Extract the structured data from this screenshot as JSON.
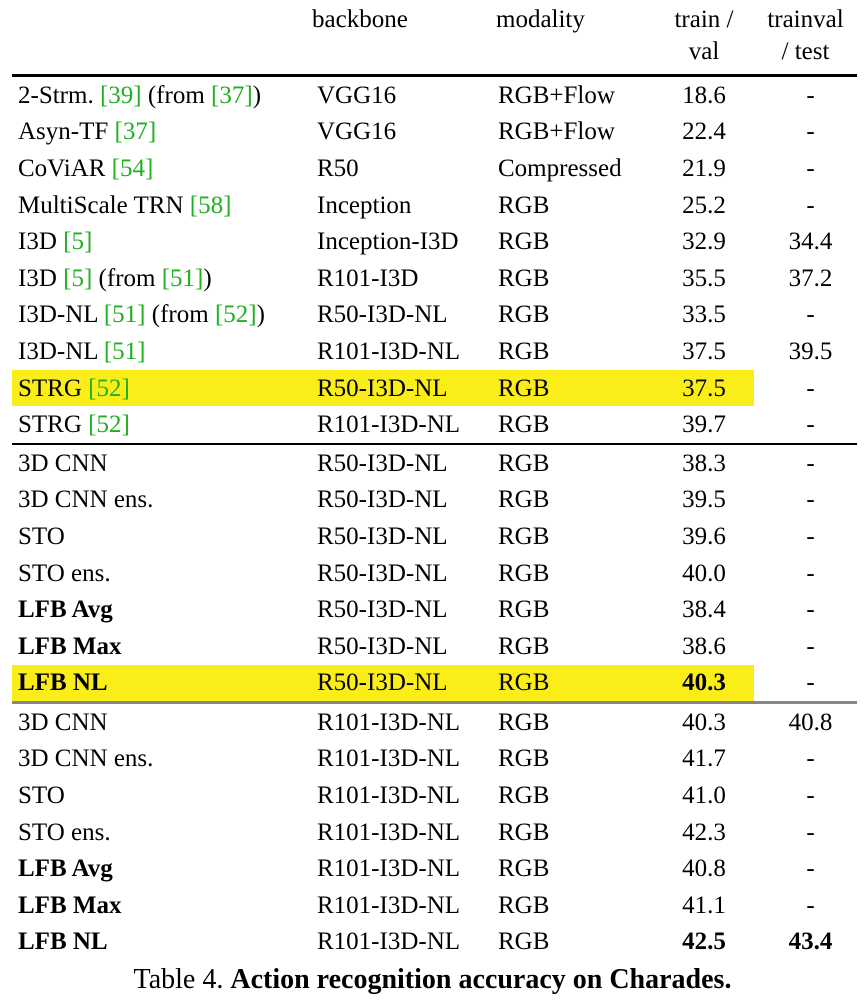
{
  "headers": {
    "method": "",
    "backbone": "backbone",
    "modality": "modality",
    "trainval_line1": "train /",
    "trainval_line2": "val",
    "test_line1": "trainval",
    "test_line2": "/ test"
  },
  "rows": [
    {
      "method_parts": [
        {
          "t": "2-Strm. "
        },
        {
          "t": "[39]",
          "cite": true
        },
        {
          "t": " (from "
        },
        {
          "t": "[37]",
          "cite": true
        },
        {
          "t": ")"
        }
      ],
      "backbone": "VGG16",
      "modality": "RGB+Flow",
      "trainval": "18.6",
      "test": "-"
    },
    {
      "method_parts": [
        {
          "t": "Asyn-TF "
        },
        {
          "t": "[37]",
          "cite": true
        }
      ],
      "backbone": "VGG16",
      "modality": "RGB+Flow",
      "trainval": "22.4",
      "test": "-"
    },
    {
      "method_parts": [
        {
          "t": "CoViAR "
        },
        {
          "t": "[54]",
          "cite": true
        }
      ],
      "backbone": "R50",
      "modality": "Compressed",
      "trainval": "21.9",
      "test": "-"
    },
    {
      "method_parts": [
        {
          "t": "MultiScale TRN "
        },
        {
          "t": "[58]",
          "cite": true
        }
      ],
      "backbone": "Inception",
      "modality": "RGB",
      "trainval": "25.2",
      "test": "-"
    },
    {
      "method_parts": [
        {
          "t": "I3D "
        },
        {
          "t": "[5]",
          "cite": true
        }
      ],
      "backbone": "Inception-I3D",
      "modality": "RGB",
      "trainval": "32.9",
      "test": "34.4"
    },
    {
      "method_parts": [
        {
          "t": "I3D "
        },
        {
          "t": "[5]",
          "cite": true
        },
        {
          "t": " (from "
        },
        {
          "t": "[51]",
          "cite": true
        },
        {
          "t": ")"
        }
      ],
      "backbone": "R101-I3D",
      "modality": "RGB",
      "trainval": "35.5",
      "test": "37.2"
    },
    {
      "method_parts": [
        {
          "t": "I3D-NL "
        },
        {
          "t": "[51]",
          "cite": true
        },
        {
          "t": " (from "
        },
        {
          "t": "[52]",
          "cite": true
        },
        {
          "t": ")"
        }
      ],
      "backbone": "R50-I3D-NL",
      "modality": "RGB",
      "trainval": "33.5",
      "test": "-"
    },
    {
      "method_parts": [
        {
          "t": "I3D-NL "
        },
        {
          "t": "[51]",
          "cite": true
        }
      ],
      "backbone": "R101-I3D-NL",
      "modality": "RGB",
      "trainval": "37.5",
      "test": "39.5"
    },
    {
      "method_parts": [
        {
          "t": "STRG "
        },
        {
          "t": "[52]",
          "cite": true
        }
      ],
      "backbone": "R50-I3D-NL",
      "modality": "RGB",
      "trainval": "37.5",
      "test": "-",
      "highlight": true
    },
    {
      "method_parts": [
        {
          "t": "STRG "
        },
        {
          "t": "[52]",
          "cite": true
        }
      ],
      "backbone": "R101-I3D-NL",
      "modality": "RGB",
      "trainval": "39.7",
      "test": "-"
    },
    {
      "method_parts": [
        {
          "t": "3D CNN"
        }
      ],
      "backbone": "R50-I3D-NL",
      "modality": "RGB",
      "trainval": "38.3",
      "test": "-",
      "sep": "black"
    },
    {
      "method_parts": [
        {
          "t": "3D CNN ens."
        }
      ],
      "backbone": "R50-I3D-NL",
      "modality": "RGB",
      "trainval": "39.5",
      "test": "-"
    },
    {
      "method_parts": [
        {
          "t": "STO"
        }
      ],
      "backbone": "R50-I3D-NL",
      "modality": "RGB",
      "trainval": "39.6",
      "test": "-"
    },
    {
      "method_parts": [
        {
          "t": "STO ens."
        }
      ],
      "backbone": "R50-I3D-NL",
      "modality": "RGB",
      "trainval": "40.0",
      "test": "-"
    },
    {
      "method_parts": [
        {
          "t": "LFB Avg",
          "bold": true
        }
      ],
      "backbone": "R50-I3D-NL",
      "modality": "RGB",
      "trainval": "38.4",
      "test": "-"
    },
    {
      "method_parts": [
        {
          "t": "LFB Max",
          "bold": true
        }
      ],
      "backbone": "R50-I3D-NL",
      "modality": "RGB",
      "trainval": "38.6",
      "test": "-"
    },
    {
      "method_parts": [
        {
          "t": "LFB NL",
          "bold": true
        }
      ],
      "backbone": "R50-I3D-NL",
      "modality": "RGB",
      "trainval": "40.3",
      "trainval_bold": true,
      "test": "-",
      "highlight": true
    },
    {
      "method_parts": [
        {
          "t": "3D CNN"
        }
      ],
      "backbone": "R101-I3D-NL",
      "modality": "RGB",
      "trainval": "40.3",
      "test": "40.8",
      "sep": "gray"
    },
    {
      "method_parts": [
        {
          "t": "3D CNN ens."
        }
      ],
      "backbone": "R101-I3D-NL",
      "modality": "RGB",
      "trainval": "41.7",
      "test": "-"
    },
    {
      "method_parts": [
        {
          "t": "STO"
        }
      ],
      "backbone": "R101-I3D-NL",
      "modality": "RGB",
      "trainval": "41.0",
      "test": "-"
    },
    {
      "method_parts": [
        {
          "t": "STO ens."
        }
      ],
      "backbone": "R101-I3D-NL",
      "modality": "RGB",
      "trainval": "42.3",
      "test": "-"
    },
    {
      "method_parts": [
        {
          "t": "LFB Avg",
          "bold": true
        }
      ],
      "backbone": "R101-I3D-NL",
      "modality": "RGB",
      "trainval": "40.8",
      "test": "-"
    },
    {
      "method_parts": [
        {
          "t": "LFB Max",
          "bold": true
        }
      ],
      "backbone": "R101-I3D-NL",
      "modality": "RGB",
      "trainval": "41.1",
      "test": "-"
    },
    {
      "method_parts": [
        {
          "t": "LFB NL",
          "bold": true
        }
      ],
      "backbone": "R101-I3D-NL",
      "modality": "RGB",
      "trainval": "42.5",
      "trainval_bold": true,
      "test": "43.4",
      "test_bold": true
    }
  ],
  "caption": {
    "prefix": "Table 4. ",
    "title": "Action recognition accuracy on Charades."
  },
  "colors": {
    "highlight": "#fbee18",
    "citation": "#20b020"
  }
}
